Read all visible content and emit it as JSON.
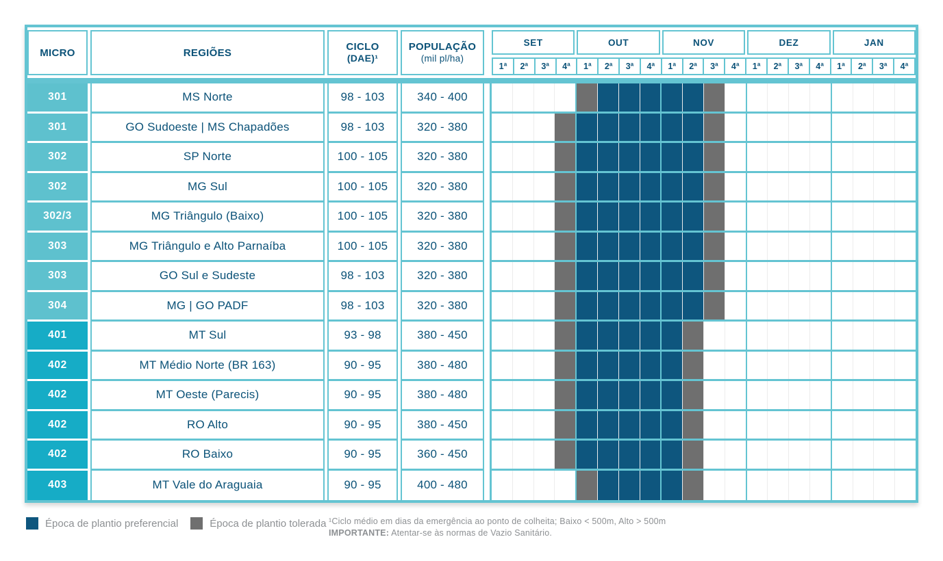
{
  "colors": {
    "teal": "#64C4D2",
    "subgrid": "#ECECEC",
    "navy": "#0B5278",
    "pref": "#0E567E",
    "tol": "#6F6F6F",
    "micro300": "#5EC1CE",
    "micro400": "#16ACC6",
    "note": "#8D9093"
  },
  "header": {
    "micro": "MICRO",
    "regioes": "REGIÕES",
    "ciclo_line1": "CICLO",
    "ciclo_line2": "(DAE)¹",
    "populacao_line1": "POPULAÇÃO",
    "populacao_line2": "(mil pl/ha)"
  },
  "chart_data": {
    "type": "table",
    "title": "Época de plantio por microrregião",
    "months": [
      "SET",
      "OUT",
      "NOV",
      "DEZ",
      "JAN"
    ],
    "weeks": [
      "1ª",
      "2ª",
      "3ª",
      "4ª"
    ],
    "cell_codes": {
      ".": "vazio",
      "T": "Época de plantio tolerada",
      "P": "Época de plantio preferencial"
    },
    "rows": [
      {
        "micro": "301",
        "group": "300",
        "regiao": "MS Norte",
        "ciclo": "98 - 103",
        "populacao": "340 - 400",
        "cells": "....TPPPPPT........."
      },
      {
        "micro": "301",
        "group": "300",
        "regiao": "GO Sudoeste | MS Chapadões",
        "ciclo": "98 - 103",
        "populacao": "320 - 380",
        "cells": "...TPPPPPPT........."
      },
      {
        "micro": "302",
        "group": "300",
        "regiao": "SP Norte",
        "ciclo": "100 - 105",
        "populacao": "320 - 380",
        "cells": "...TPPPPPPT........."
      },
      {
        "micro": "302",
        "group": "300",
        "regiao": "MG Sul",
        "ciclo": "100 - 105",
        "populacao": "320 - 380",
        "cells": "...TPPPPPPT........."
      },
      {
        "micro": "302/3",
        "group": "300",
        "regiao": "MG Triângulo (Baixo)",
        "ciclo": "100 - 105",
        "populacao": "320 - 380",
        "cells": "...TPPPPPPT........."
      },
      {
        "micro": "303",
        "group": "300",
        "regiao": "MG Triângulo e Alto Parnaíba",
        "ciclo": "100 - 105",
        "populacao": "320 - 380",
        "cells": "...TPPPPPPT........."
      },
      {
        "micro": "303",
        "group": "300",
        "regiao": "GO Sul e Sudeste",
        "ciclo": "98 - 103",
        "populacao": "320 - 380",
        "cells": "...TPPPPPPT........."
      },
      {
        "micro": "304",
        "group": "300",
        "regiao": "MG | GO PADF",
        "ciclo": "98 - 103",
        "populacao": "320 - 380",
        "cells": "...TPPPPPPT........."
      },
      {
        "micro": "401",
        "group": "400",
        "regiao": "MT Sul",
        "ciclo": "93 - 98",
        "populacao": "380 - 450",
        "cells": "...TPPPPPT.........."
      },
      {
        "micro": "402",
        "group": "400",
        "regiao": "MT Médio Norte (BR 163)",
        "ciclo": "90 - 95",
        "populacao": "380 - 480",
        "cells": "...TPPPPPT.........."
      },
      {
        "micro": "402",
        "group": "400",
        "regiao": "MT Oeste (Parecis)",
        "ciclo": "90 - 95",
        "populacao": "380 - 480",
        "cells": "...TPPPPPT.........."
      },
      {
        "micro": "402",
        "group": "400",
        "regiao": "RO Alto",
        "ciclo": "90 - 95",
        "populacao": "380 - 450",
        "cells": "...TPPPPPT.........."
      },
      {
        "micro": "402",
        "group": "400",
        "regiao": "RO Baixo",
        "ciclo": "90 - 95",
        "populacao": "360 - 450",
        "cells": "...TPPPPPT.........."
      },
      {
        "micro": "403",
        "group": "400",
        "regiao": "MT Vale do Araguaia",
        "ciclo": "90 - 95",
        "populacao": "400 - 480",
        "cells": "....TPPPPT.........."
      }
    ]
  },
  "legend": {
    "preferencial": "Época de plantio preferencial",
    "tolerada": "Época de plantio tolerada"
  },
  "footnotes": {
    "ciclo_note": "¹Ciclo médio em dias da emergência ao ponto de colheita; Baixo < 500m, Alto > 500m",
    "important_label": "IMPORTANTE:",
    "important_text": "Atentar-se às normas de Vazio Sanitário."
  }
}
